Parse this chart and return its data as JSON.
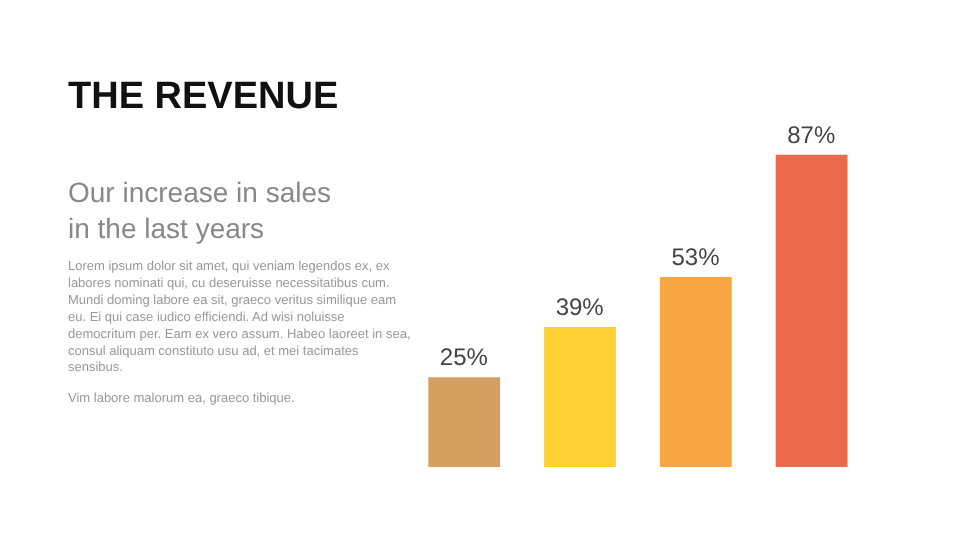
{
  "chart_data": {
    "type": "bar",
    "title": "THE REVENUE",
    "subtitle": "Our increase in sales in the last years",
    "annotations": [
      "Lorem ipsum dolor sit amet, qui veniam legendos ex, ex labores nominati qui, cu deseruisse necessitatibus cum. Mundi doming labore ea sit, graeco veritus similique eam eu. Ei qui case iudico efficiendi. Ad wisi noluisse democritum per. Eam ex vero assum. Habeo laoreet in sea, consul aliquam constituto usu ad, et mei tacimates sensibus.",
      "Vim labore malorum ea, graeco tibique."
    ],
    "categories": [
      null,
      null,
      null,
      null
    ],
    "values": [
      25,
      39,
      53,
      87
    ],
    "colors": [
      "#d4a060",
      "#fdd033",
      "#f8a544",
      "#ec6a4c"
    ],
    "value_labels": [
      "25%",
      "39%",
      "53%",
      "87%"
    ]
  }
}
